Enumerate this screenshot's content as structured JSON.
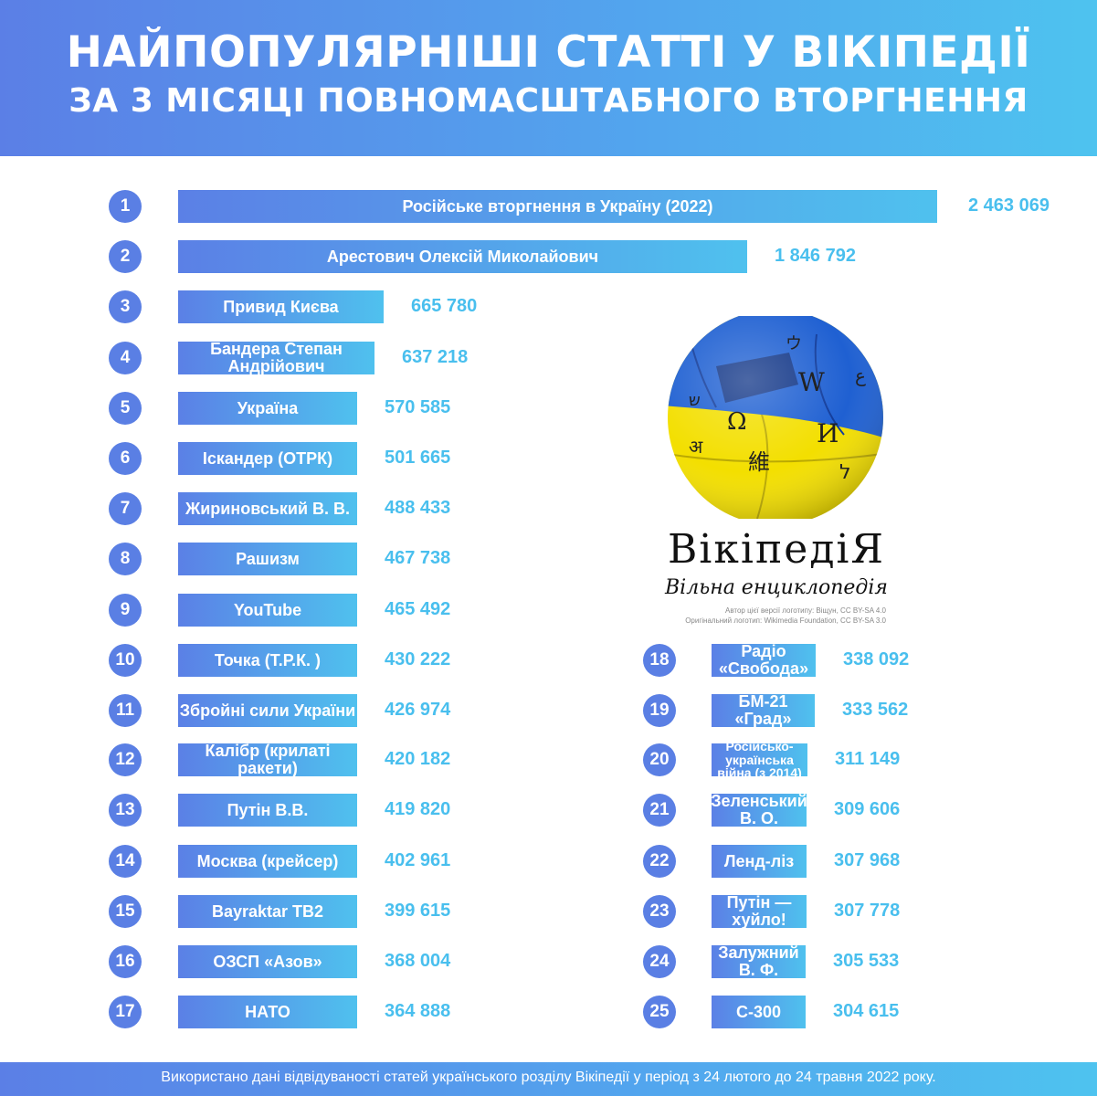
{
  "header": {
    "title_line1": "НАЙПОПУЛЯРНІШІ СТАТТІ У ВІКІПЕДІЇ",
    "title_line2": "ЗА 3 МІСЯЦІ ПОВНОМАСШТАБНОГО ВТОРГНЕННЯ"
  },
  "footer": {
    "text": "Використано дані відвідуваності статей українського розділу Вікіпедії у період з 24 лютого до 24 травня 2022 року."
  },
  "logo": {
    "wordmark": "ВікіпедіЯ",
    "tagline": "Вільна енциклопедія",
    "credit_line1": "Автор цієї версії логотипу: Віщун, CC BY-SA 4.0",
    "credit_line2": "Оригінальний логотип: Wikimedia Foundation, CC BY-SA 3.0",
    "glyphs": [
      "W",
      "Ω",
      "И",
      "維",
      "ウ",
      "ﻉ",
      "ל",
      "अ",
      "ש"
    ]
  },
  "colors": {
    "bar_start": "#5b80e6",
    "bar_end": "#4fc1ee",
    "rank_circle": "#5a7fe4",
    "value_text": "#49bfee",
    "globe_blue": "#1e5fd0",
    "globe_yellow": "#f5e000"
  },
  "chart_data": {
    "type": "bar",
    "orientation": "horizontal",
    "categories": [
      "Російське вторгнення в Україну (2022)",
      "Арестович Олексій Миколайович",
      "Привид Києва",
      "Бандера Степан Андрійович",
      "Україна",
      "Іскандер (ОТРК)",
      "Жириновський В. В.",
      "Рашизм",
      "YouTube",
      "Точка (Т.Р.К. )",
      "Збройні сили України",
      "Калібр (крилаті ракети)",
      "Путін В.В.",
      "Москва (крейсер)",
      "Bayraktar TB2",
      "ОЗСП «Азов»",
      "НАТО",
      "Радіо «Свобода»",
      "БМ-21 «Град»",
      "Російсько-українська війна (з 2014)",
      "Зеленський В. О.",
      "Ленд-ліз",
      "Путін — хуйло!",
      "Залужний В. Ф.",
      "С-300"
    ],
    "ranks": [
      "1",
      "2",
      "3",
      "4",
      "5",
      "6",
      "7",
      "8",
      "9",
      "10",
      "11",
      "12",
      "13",
      "14",
      "15",
      "16",
      "17",
      "18",
      "19",
      "20",
      "21",
      "22",
      "23",
      "24",
      "25"
    ],
    "values": [
      2463069,
      1846792,
      665780,
      637218,
      570585,
      501665,
      488433,
      467738,
      465492,
      430222,
      426974,
      420182,
      419820,
      402961,
      399615,
      368004,
      364888,
      338092,
      333562,
      311149,
      309606,
      307968,
      307778,
      305533,
      304615
    ],
    "value_labels": [
      "2 463 069",
      "1 846 792",
      "665 780",
      "637 218",
      "570 585",
      "501 665",
      "488 433",
      "467 738",
      "465 492",
      "430 222",
      "426 974",
      "420 182",
      "419 820",
      "402 961",
      "399 615",
      "368 004",
      "364 888",
      "338 092",
      "333 562",
      "311 149",
      "309 606",
      "307 968",
      "307 778",
      "305 533",
      "304 615"
    ]
  }
}
